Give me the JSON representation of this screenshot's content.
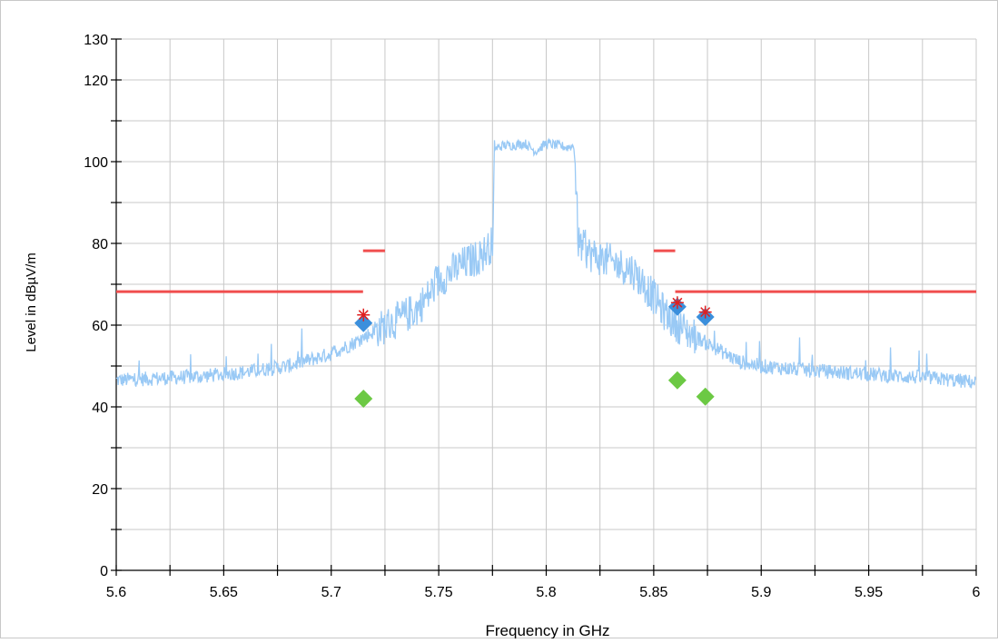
{
  "chart_data": {
    "type": "line",
    "xlabel": "Frequency in GHz",
    "ylabel": "Level in dBµV/m",
    "xlim": [
      5.6,
      6.0
    ],
    "ylim": [
      0,
      130
    ],
    "x_ticks": [
      5.6,
      5.65,
      5.7,
      5.75,
      5.8,
      5.85,
      5.9,
      5.95,
      6.0
    ],
    "x_tick_labels": [
      "5.6",
      "5.65",
      "5.7",
      "5.75",
      "5.8",
      "5.85",
      "5.9",
      "5.95",
      "6"
    ],
    "y_ticks": [
      0,
      20,
      40,
      60,
      80,
      100,
      120,
      130
    ],
    "y_tick_labels": [
      "0",
      "20",
      "40",
      "60",
      "80",
      "100",
      "120",
      "130"
    ],
    "grid": true,
    "series": [
      {
        "color": "#99c9f5",
        "style": "noisy-line",
        "x": [
          5.6,
          5.62,
          5.64,
          5.66,
          5.68,
          5.69,
          5.7,
          5.71,
          5.715,
          5.72,
          5.73,
          5.74,
          5.745,
          5.75,
          5.76,
          5.77,
          5.775,
          5.776,
          5.78,
          5.785,
          5.79,
          5.795,
          5.8,
          5.805,
          5.81,
          5.813,
          5.815,
          5.82,
          5.83,
          5.84,
          5.85,
          5.855,
          5.86,
          5.865,
          5.87,
          5.88,
          5.89,
          5.9,
          5.92,
          5.95,
          5.98,
          6.0
        ],
        "y": [
          46.5,
          47,
          47.5,
          48.5,
          50,
          51.5,
          53,
          55.5,
          57,
          58.5,
          61,
          64,
          67,
          71,
          74.5,
          77,
          80,
          103,
          104,
          104,
          104.5,
          102.5,
          104.5,
          104,
          103.5,
          104,
          80,
          77.5,
          75.5,
          73.5,
          67,
          63,
          60.5,
          58.5,
          57,
          54,
          51,
          50,
          49,
          48,
          47,
          46
        ]
      }
    ],
    "limit_lines": [
      {
        "color": "#f04e4e",
        "x": [
          5.6,
          5.7148
        ],
        "y": [
          68.2,
          68.2
        ]
      },
      {
        "color": "#f04e4e",
        "x": [
          5.7148,
          5.725
        ],
        "y": [
          78.2,
          78.2
        ]
      },
      {
        "color": "#f04e4e",
        "x": [
          5.85,
          5.86
        ],
        "y": [
          78.2,
          78.2
        ]
      },
      {
        "color": "#f04e4e",
        "x": [
          5.86,
          6.0
        ],
        "y": [
          68.2,
          68.2
        ]
      }
    ],
    "markers": [
      {
        "shape": "diamond",
        "color": "#3b8fdc",
        "x": [
          5.715,
          5.861,
          5.874
        ],
        "y": [
          60.5,
          64.5,
          62
        ]
      },
      {
        "shape": "diamond",
        "color": "#6cc944",
        "x": [
          5.715,
          5.861,
          5.874
        ],
        "y": [
          42,
          46.5,
          42.5
        ]
      },
      {
        "shape": "asterisk",
        "color": "#e02020",
        "x": [
          5.715,
          5.861,
          5.874
        ],
        "y": [
          62.5,
          65.5,
          63.2
        ]
      }
    ]
  }
}
